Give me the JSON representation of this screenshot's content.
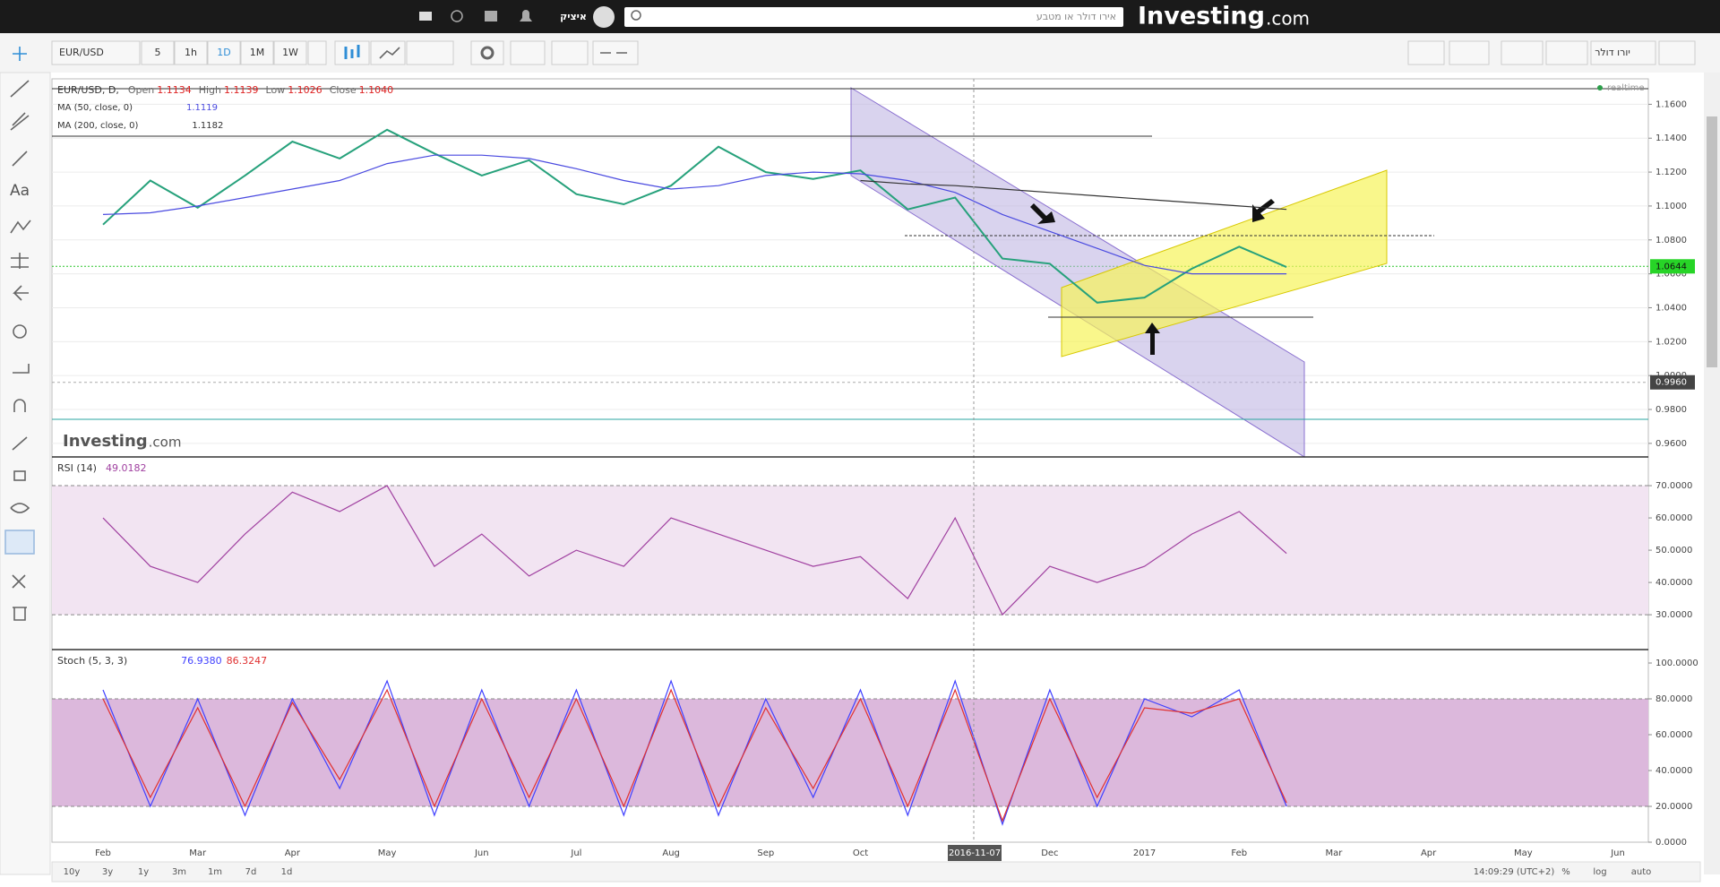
{
  "header": {
    "brand": "Investing",
    "brand_suffix": ".com",
    "search_placeholder": "אירו דולר או מטבע",
    "user": "איציק"
  },
  "toolbar": {
    "symbol": "EUR/USD",
    "intervals": [
      "5",
      "1h",
      "1D",
      "1M",
      "1W"
    ],
    "active_interval_index": 2,
    "pair_name": "יורו דולר"
  },
  "sidebar": {
    "text_tool": "Aa"
  },
  "chart_data": [
    {
      "type": "line",
      "title": "EUR/USD, D,",
      "ohlc": [
        {
          "label": "Open",
          "value": "1.1134"
        },
        {
          "label": "High",
          "value": "1.1139"
        },
        {
          "label": "Low",
          "value": "1.1026"
        },
        {
          "label": "Close",
          "value": "1.1040"
        }
      ],
      "realtime": "realtime",
      "watermark": "Investing",
      "watermark_suffix": ".com",
      "values": [
        1.089,
        1.115,
        1.099,
        1.118,
        1.138,
        1.128,
        1.145,
        1.131,
        1.118,
        1.127,
        1.107,
        1.101,
        1.112,
        1.135,
        1.12,
        1.116,
        1.121,
        1.098,
        1.105,
        1.069,
        1.066,
        1.043,
        1.046,
        1.063,
        1.076,
        1.064,
        null,
        null,
        null,
        null,
        null,
        null,
        null
      ],
      "color": "#26a17b",
      "series": [
        {
          "name": "MA (50, close, 0)",
          "legend_value": "1.1119",
          "color": "#4a4ae0",
          "values": [
            1.095,
            1.096,
            1.1,
            1.105,
            1.11,
            1.115,
            1.125,
            1.13,
            1.13,
            1.128,
            1.122,
            1.115,
            1.11,
            1.112,
            1.118,
            1.12,
            1.119,
            1.115,
            1.108,
            1.095,
            1.085,
            1.075,
            1.065,
            1.06,
            1.06,
            1.06,
            null,
            null,
            null,
            null,
            null,
            null,
            null
          ]
        },
        {
          "name": "MA (200, close, 0)",
          "legend_value": "1.1182",
          "color": "#333333",
          "values": [
            null,
            null,
            null,
            null,
            null,
            null,
            null,
            null,
            null,
            null,
            null,
            null,
            null,
            null,
            null,
            null,
            1.115,
            1.113,
            1.112,
            1.11,
            1.108,
            1.106,
            1.104,
            1.102,
            1.1,
            1.098,
            null,
            null,
            null,
            null,
            null,
            null,
            null
          ]
        }
      ],
      "ylim": [
        0.952,
        1.175
      ],
      "yticks": [
        {
          "value": 0.96,
          "label": "0.9600"
        },
        {
          "value": 0.98,
          "label": "0.9800"
        },
        {
          "value": 1,
          "label": "1.0000"
        },
        {
          "value": 1.02,
          "label": "1.0200"
        },
        {
          "value": 1.04,
          "label": "1.0400"
        },
        {
          "value": 1.06,
          "label": "1.0600"
        },
        {
          "value": 1.08,
          "label": "1.0800"
        },
        {
          "value": 1.1,
          "label": "1.1000"
        },
        {
          "value": 1.12,
          "label": "1.1200"
        },
        {
          "value": 1.14,
          "label": "1.1400"
        },
        {
          "value": 1.16,
          "label": "1.1600"
        }
      ],
      "grid": true,
      "last_price": 1.0644,
      "crosshair_price": {
        "value": 0.996,
        "label": "0.9960"
      },
      "crosshair_date": "2016-11-07"
    },
    {
      "type": "line",
      "title": "RSI (14)",
      "legend_value": "49.0182",
      "values": [
        60,
        45,
        40,
        55,
        68,
        62,
        70,
        45,
        55,
        42,
        50,
        45,
        60,
        55,
        50,
        45,
        48,
        35,
        60,
        30,
        45,
        40,
        45,
        55,
        62,
        49,
        null,
        null,
        null,
        null,
        null,
        null,
        null
      ],
      "color": "#a040a0",
      "levels": [
        30,
        70
      ],
      "band_color": "#f2e4f2",
      "ylim": [
        19.2,
        78.9
      ],
      "yticks": [
        {
          "value": 30,
          "label": "30.0000"
        },
        {
          "value": 40,
          "label": "40.0000"
        },
        {
          "value": 50,
          "label": "50.0000"
        },
        {
          "value": 60,
          "label": "60.0000"
        },
        {
          "value": 70,
          "label": "70.0000"
        }
      ]
    },
    {
      "type": "line",
      "title": "Stoch (5, 3, 3)",
      "series": [
        {
          "legend_value": "76.9380",
          "color": "#4040ff",
          "values": [
            85,
            20,
            80,
            15,
            80,
            30,
            90,
            15,
            85,
            20,
            85,
            15,
            90,
            15,
            80,
            25,
            85,
            15,
            90,
            10,
            85,
            20,
            80,
            70,
            85,
            20,
            null,
            null,
            null,
            null,
            null,
            null,
            null
          ]
        },
        {
          "legend_value": "86.3247",
          "color": "#e03030",
          "values": [
            80,
            25,
            75,
            20,
            78,
            35,
            85,
            20,
            80,
            25,
            80,
            20,
            85,
            20,
            75,
            30,
            80,
            20,
            85,
            12,
            80,
            25,
            75,
            72,
            80,
            22,
            null,
            null,
            null,
            null,
            null,
            null,
            null
          ]
        }
      ],
      "levels": [
        20,
        80
      ],
      "band_color": "#dcb8dc",
      "categories": [
        "Feb",
        null,
        "Mar",
        null,
        "Apr",
        null,
        "May",
        null,
        "Jun",
        null,
        "Jul",
        null,
        "Aug",
        null,
        "Sep",
        null,
        "Oct",
        null,
        null,
        null,
        "Dec",
        null,
        "2017",
        null,
        "Feb",
        null,
        "Mar",
        null,
        "Apr",
        null,
        "May",
        null,
        "Jun"
      ],
      "ylim": [
        0,
        107.5
      ],
      "yticks": [
        {
          "value": 0,
          "label": "0.0000"
        },
        {
          "value": 20,
          "label": "20.0000"
        },
        {
          "value": 40,
          "label": "40.0000"
        },
        {
          "value": 60,
          "label": "60.0000"
        },
        {
          "value": 80,
          "label": "80.0000"
        },
        {
          "value": 100,
          "label": "100.0000"
        }
      ]
    }
  ],
  "footer": {
    "ranges": [
      "10y",
      "3y",
      "1y",
      "3m",
      "1m",
      "7d",
      "1d"
    ],
    "clock": "14:09:29 (UTC+2)",
    "scale_options": [
      "%",
      "log",
      "auto"
    ]
  }
}
